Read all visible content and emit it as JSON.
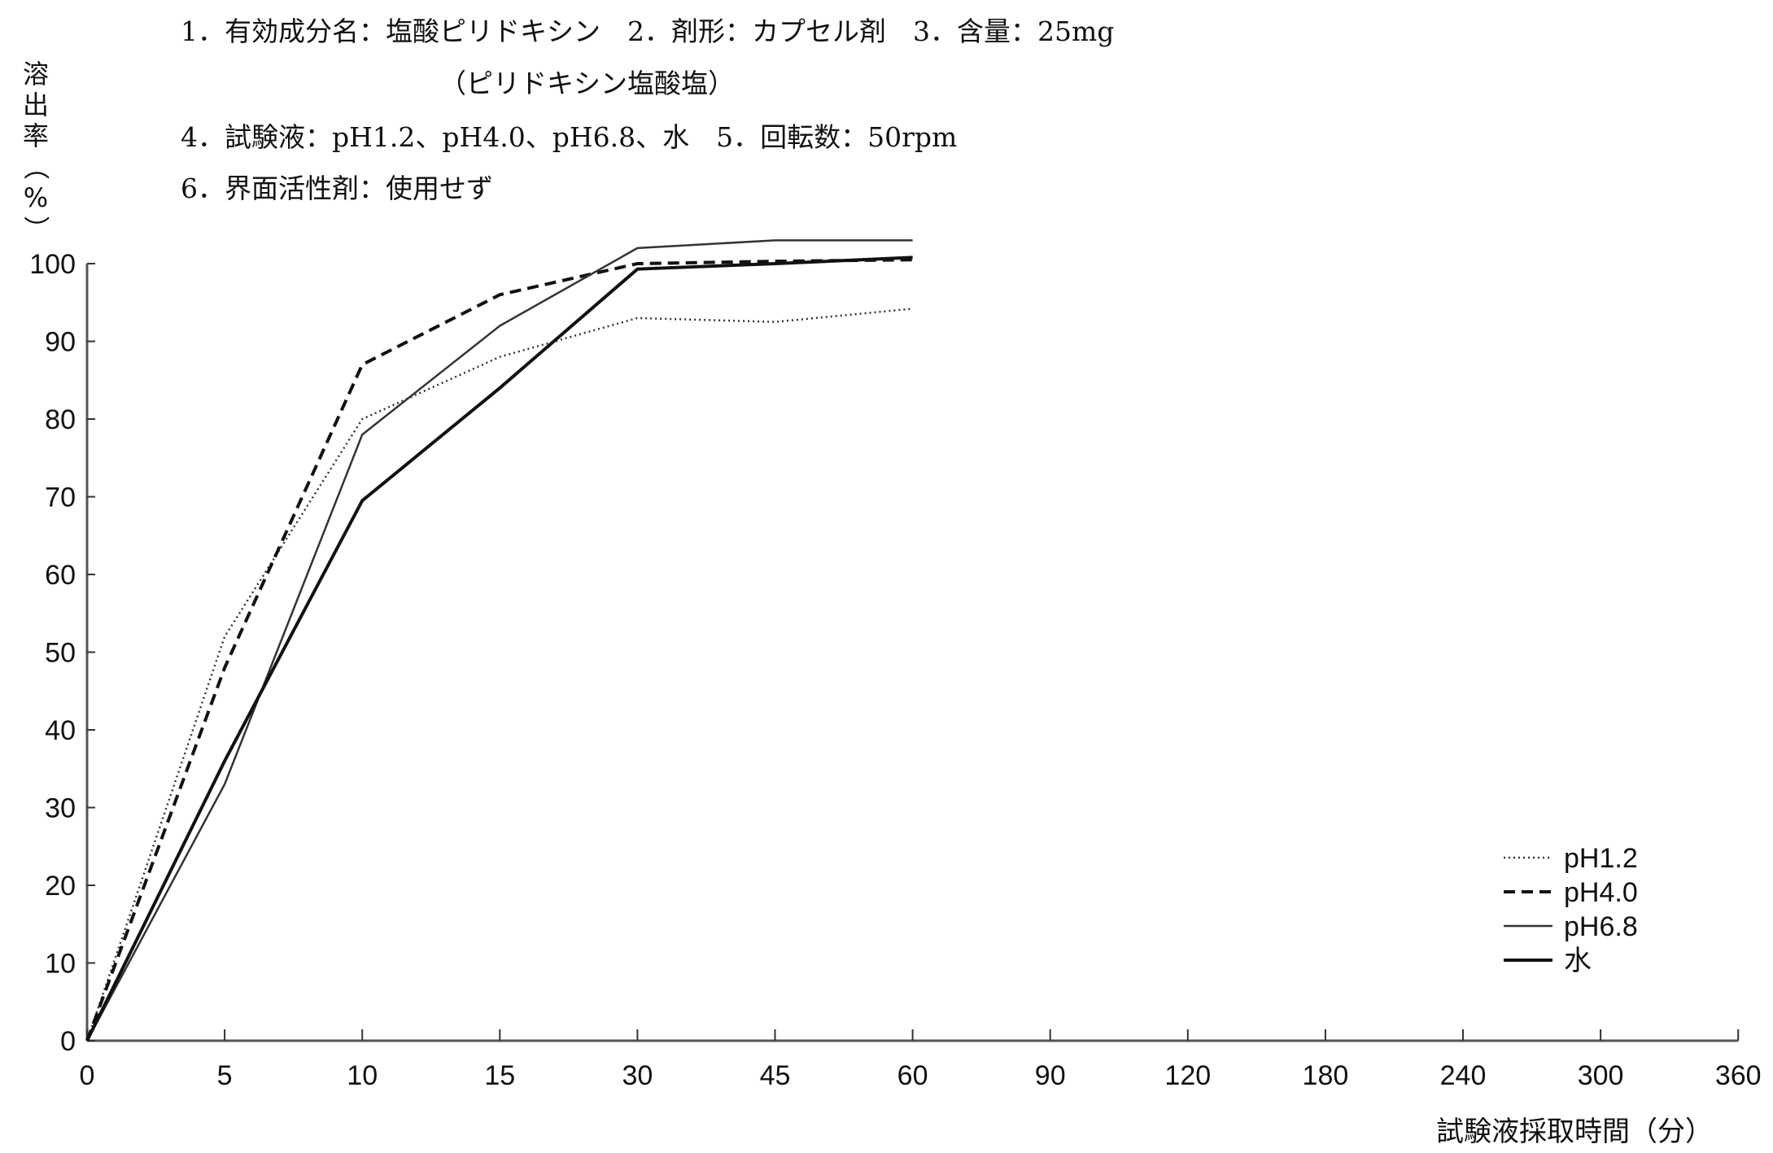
{
  "header": {
    "line1": "1．有効成分名：塩酸ピリドキシン　2．剤形：カプセル剤　3．含量：25mg",
    "line2": "（ピリドキシン塩酸塩）",
    "line3": "4．試験液：pH1.2、pH4.0、pH6.8、水　5．回転数：50rpm",
    "line4": "6．界面活性剤：使用せず"
  },
  "chart_data": {
    "type": "line",
    "title": "",
    "xlabel": "試験液採取時間（分）",
    "ylabel": [
      "溶",
      "出",
      "率",
      "（",
      "%",
      "）"
    ],
    "x_categories": [
      "0",
      "5",
      "10",
      "15",
      "30",
      "45",
      "60",
      "90",
      "120",
      "180",
      "240",
      "300",
      "360"
    ],
    "y_ticks": [
      "0",
      "10",
      "20",
      "30",
      "40",
      "50",
      "60",
      "70",
      "80",
      "90",
      "100"
    ],
    "ylim": [
      0,
      100
    ],
    "grid": false,
    "legend_position": "bottom-right",
    "series": [
      {
        "name": "pH1.2",
        "style": "dotted",
        "values": [
          0,
          52,
          80,
          88,
          93,
          92.5,
          94.2
        ]
      },
      {
        "name": "pH4.0",
        "style": "dashed",
        "values": [
          0,
          48,
          87,
          96,
          100,
          100.3,
          100.5
        ]
      },
      {
        "name": "pH6.8",
        "style": "thin",
        "values": [
          0,
          33,
          78,
          92,
          102,
          103,
          103
        ]
      },
      {
        "name": "水",
        "style": "solid",
        "values": [
          0,
          36,
          69.5,
          84,
          99.3,
          100,
          100.8
        ]
      }
    ]
  }
}
